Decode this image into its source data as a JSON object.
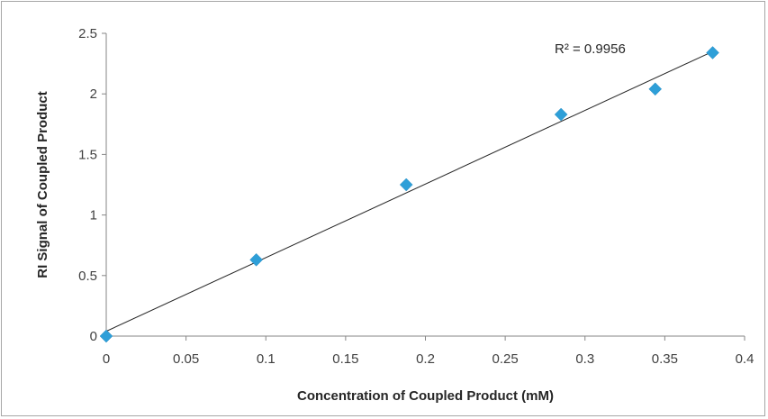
{
  "chart_data": {
    "type": "scatter",
    "title": "",
    "xlabel": "Concentration of Coupled Product (mM)",
    "ylabel": "RI Signal of Coupled Product",
    "xlim": [
      0,
      0.4
    ],
    "ylim": [
      0,
      2.5
    ],
    "x_ticks": [
      "0",
      "0.05",
      "0.1",
      "0.15",
      "0.2",
      "0.25",
      "0.3",
      "0.35",
      "0.4"
    ],
    "y_ticks": [
      "0",
      "0.5",
      "1",
      "1.5",
      "2",
      "2.5"
    ],
    "grid": false,
    "marker": "diamond",
    "marker_color": "#2e9fd8",
    "series": [
      {
        "x": [
          0,
          0.094,
          0.188,
          0.285,
          0.344,
          0.38
        ],
        "y": [
          0,
          0.63,
          1.25,
          1.83,
          2.04,
          2.34
        ]
      }
    ],
    "trendline": {
      "type": "linear",
      "x": [
        0,
        0.38
      ],
      "y": [
        0.04,
        2.35
      ],
      "color": "#262626"
    },
    "annotation": "R² = 0.9956"
  }
}
